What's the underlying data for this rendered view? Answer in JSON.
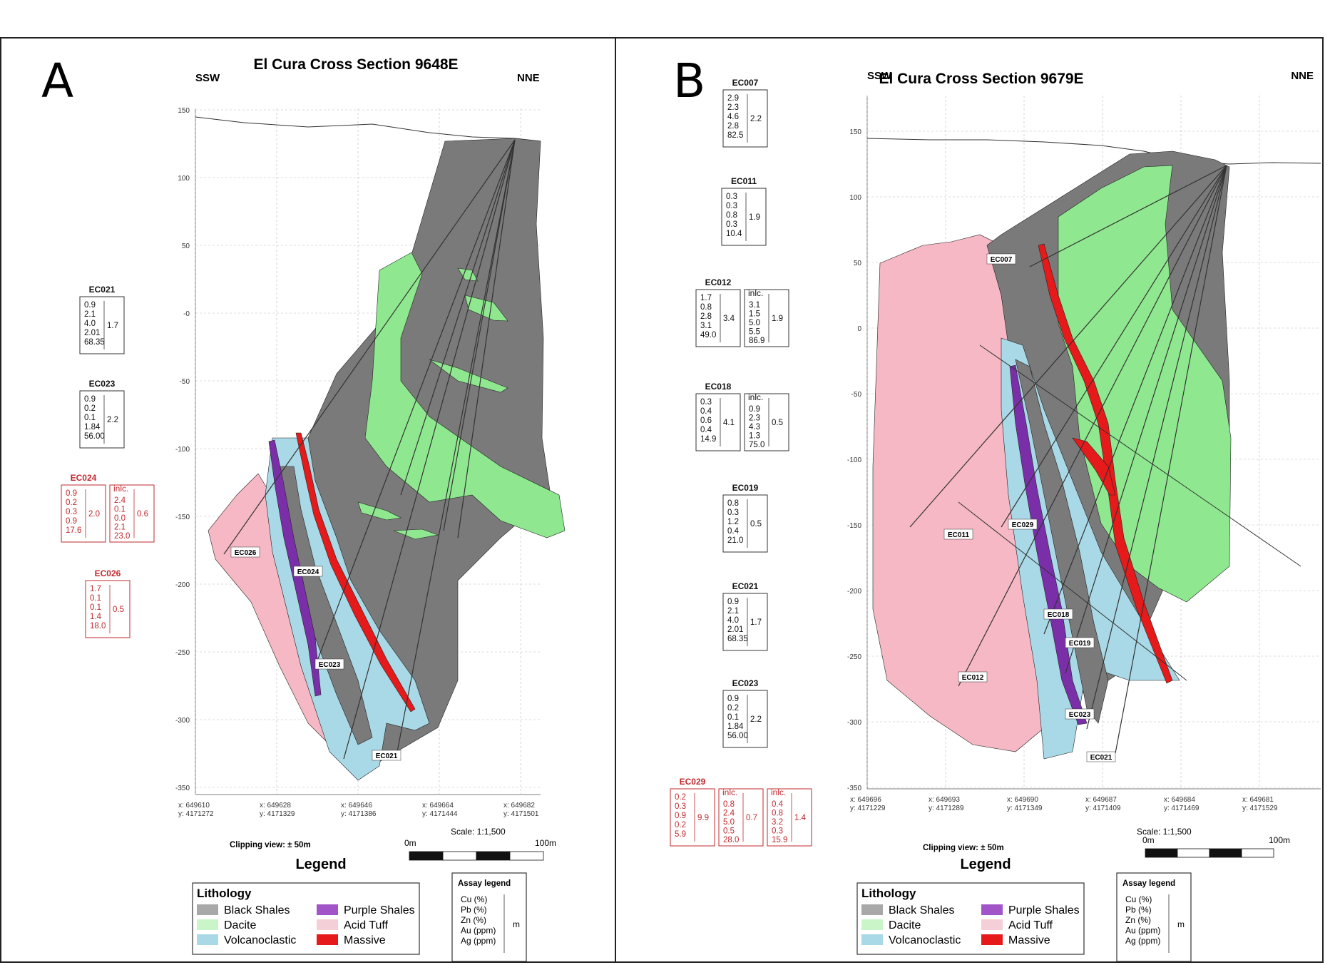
{
  "colors": {
    "black_shales": "#7a7a7a",
    "dacite": "#8fe88f",
    "volcanoclastic": "#a9d8e6",
    "purple_shales": "#7a2fa8",
    "acid_tuff": "#f5b8c4",
    "massive": "#e61a1a",
    "assay_red": "#c0282d"
  },
  "panel_a": {
    "letter": "A",
    "title": "El Cura Cross Section 9648E",
    "dir_left": "SSW",
    "dir_right": "NNE",
    "y_ticks": [
      "150",
      "100",
      "50",
      "-0",
      "-50",
      "-100",
      "-150",
      "-200",
      "-250",
      "-300",
      "-350"
    ],
    "coords": [
      {
        "x": "x: 649610",
        "y": "y: 4171272"
      },
      {
        "x": "x: 649628",
        "y": "y: 4171329"
      },
      {
        "x": "x: 649646",
        "y": "y: 4171386"
      },
      {
        "x": "x: 649664",
        "y": "y: 4171444"
      },
      {
        "x": "x: 649682",
        "y": "y: 4171501"
      }
    ],
    "scale": "Scale: 1:1,500",
    "clipping": "Clipping view: ± 50m",
    "bar_start": "0m",
    "bar_end": "100m",
    "holes": [
      "EC026",
      "EC024",
      "EC023",
      "EC021"
    ],
    "assays": [
      {
        "name": "EC021",
        "values": [
          "0.9",
          "2.1",
          "4.0",
          "2.01",
          "68.35"
        ],
        "avg": "1.7",
        "red": false
      },
      {
        "name": "EC023",
        "values": [
          "0.9",
          "0.2",
          "0.1",
          "1.84",
          "56.00"
        ],
        "avg": "2.2",
        "red": false
      },
      {
        "name": "EC024",
        "values": [
          "0.9",
          "0.2",
          "0.3",
          "0.9",
          "17.6"
        ],
        "avg": "2.0",
        "incl_label": "inlc.",
        "incl_values": [
          "2.4",
          "0.1",
          "0.0",
          "2.1",
          "23.0"
        ],
        "incl_avg": "0.6",
        "red": true
      },
      {
        "name": "EC026",
        "values": [
          "1.7",
          "0.1",
          "0.1",
          "1.4",
          "18.0"
        ],
        "avg": "0.5",
        "red": true
      }
    ]
  },
  "panel_b": {
    "letter": "B",
    "title": "El Cura Cross Section 9679E",
    "dir_left": "SSW",
    "dir_right": "NNE",
    "y_ticks": [
      "150",
      "100",
      "50",
      "0",
      "-50",
      "-100",
      "-150",
      "-200",
      "-250",
      "-300",
      "-350"
    ],
    "coords": [
      {
        "x": "x: 649696",
        "y": "y: 4171229"
      },
      {
        "x": "x: 649693",
        "y": "y: 4171289"
      },
      {
        "x": "x: 649690",
        "y": "y: 4171349"
      },
      {
        "x": "x: 649687",
        "y": "y: 4171409"
      },
      {
        "x": "x: 649684",
        "y": "y: 4171469"
      },
      {
        "x": "x: 649681",
        "y": "y: 4171529"
      }
    ],
    "scale": "Scale: 1:1,500",
    "clipping": "Clipping view: ± 50m",
    "bar_start": "0m",
    "bar_end": "100m",
    "holes": [
      "EC007",
      "EC011",
      "EC029",
      "EC018",
      "EC019",
      "EC012",
      "EC023",
      "EC021"
    ],
    "assays": [
      {
        "name": "EC007",
        "values": [
          "2.9",
          "2.3",
          "4.6",
          "2.8",
          "82.5"
        ],
        "avg": "2.2",
        "red": false
      },
      {
        "name": "EC011",
        "values": [
          "0.3",
          "0.3",
          "0.8",
          "0.3",
          "10.4"
        ],
        "avg": "1.9",
        "red": false
      },
      {
        "name": "EC012",
        "values": [
          "1.7",
          "0.8",
          "2.8",
          "3.1",
          "49.0"
        ],
        "avg": "3.4",
        "incl_label": "inlc.",
        "incl_values": [
          "3.1",
          "1.5",
          "5.0",
          "5.5",
          "86.9"
        ],
        "incl_avg": "1.9",
        "red": false
      },
      {
        "name": "EC018",
        "values": [
          "0.3",
          "0.4",
          "0.6",
          "0.4",
          "14.9"
        ],
        "avg": "4.1",
        "incl_label": "inlc.",
        "incl_values": [
          "0.9",
          "2.3",
          "4.3",
          "1.3",
          "75.0"
        ],
        "incl_avg": "0.5",
        "red": false
      },
      {
        "name": "EC019",
        "values": [
          "0.8",
          "0.3",
          "1.2",
          "0.4",
          "21.0"
        ],
        "avg": "0.5",
        "red": false
      },
      {
        "name": "EC021",
        "values": [
          "0.9",
          "2.1",
          "4.0",
          "2.01",
          "68.35"
        ],
        "avg": "1.7",
        "red": false
      },
      {
        "name": "EC023",
        "values": [
          "0.9",
          "0.2",
          "0.1",
          "1.84",
          "56.00"
        ],
        "avg": "2.2",
        "red": false
      },
      {
        "name": "EC029",
        "values": [
          "0.2",
          "0.3",
          "0.9",
          "0.2",
          "5.9"
        ],
        "avg": "9.9",
        "incl_label": "inlc.",
        "incl_values": [
          "0.8",
          "2.4",
          "5.0",
          "0.5",
          "28.0"
        ],
        "incl_avg": "0.7",
        "incl2_label": "inlc.",
        "incl2_values": [
          "0.4",
          "0.8",
          "3.2",
          "0.3",
          "15.9"
        ],
        "incl2_avg": "1.4",
        "red": true
      }
    ]
  },
  "legend": {
    "title": "Legend",
    "lithology_title": "Lithology",
    "items": [
      "Black Shales",
      "Dacite",
      "Volcanoclastic",
      "Purple Shales",
      "Acid Tuff",
      "Massive"
    ],
    "assay_title": "Assay legend",
    "assay_items": [
      "Cu (%)",
      "Pb (%)",
      "Zn (%)",
      "Au (ppm)",
      "Ag (ppm)"
    ],
    "assay_unit": "m"
  }
}
